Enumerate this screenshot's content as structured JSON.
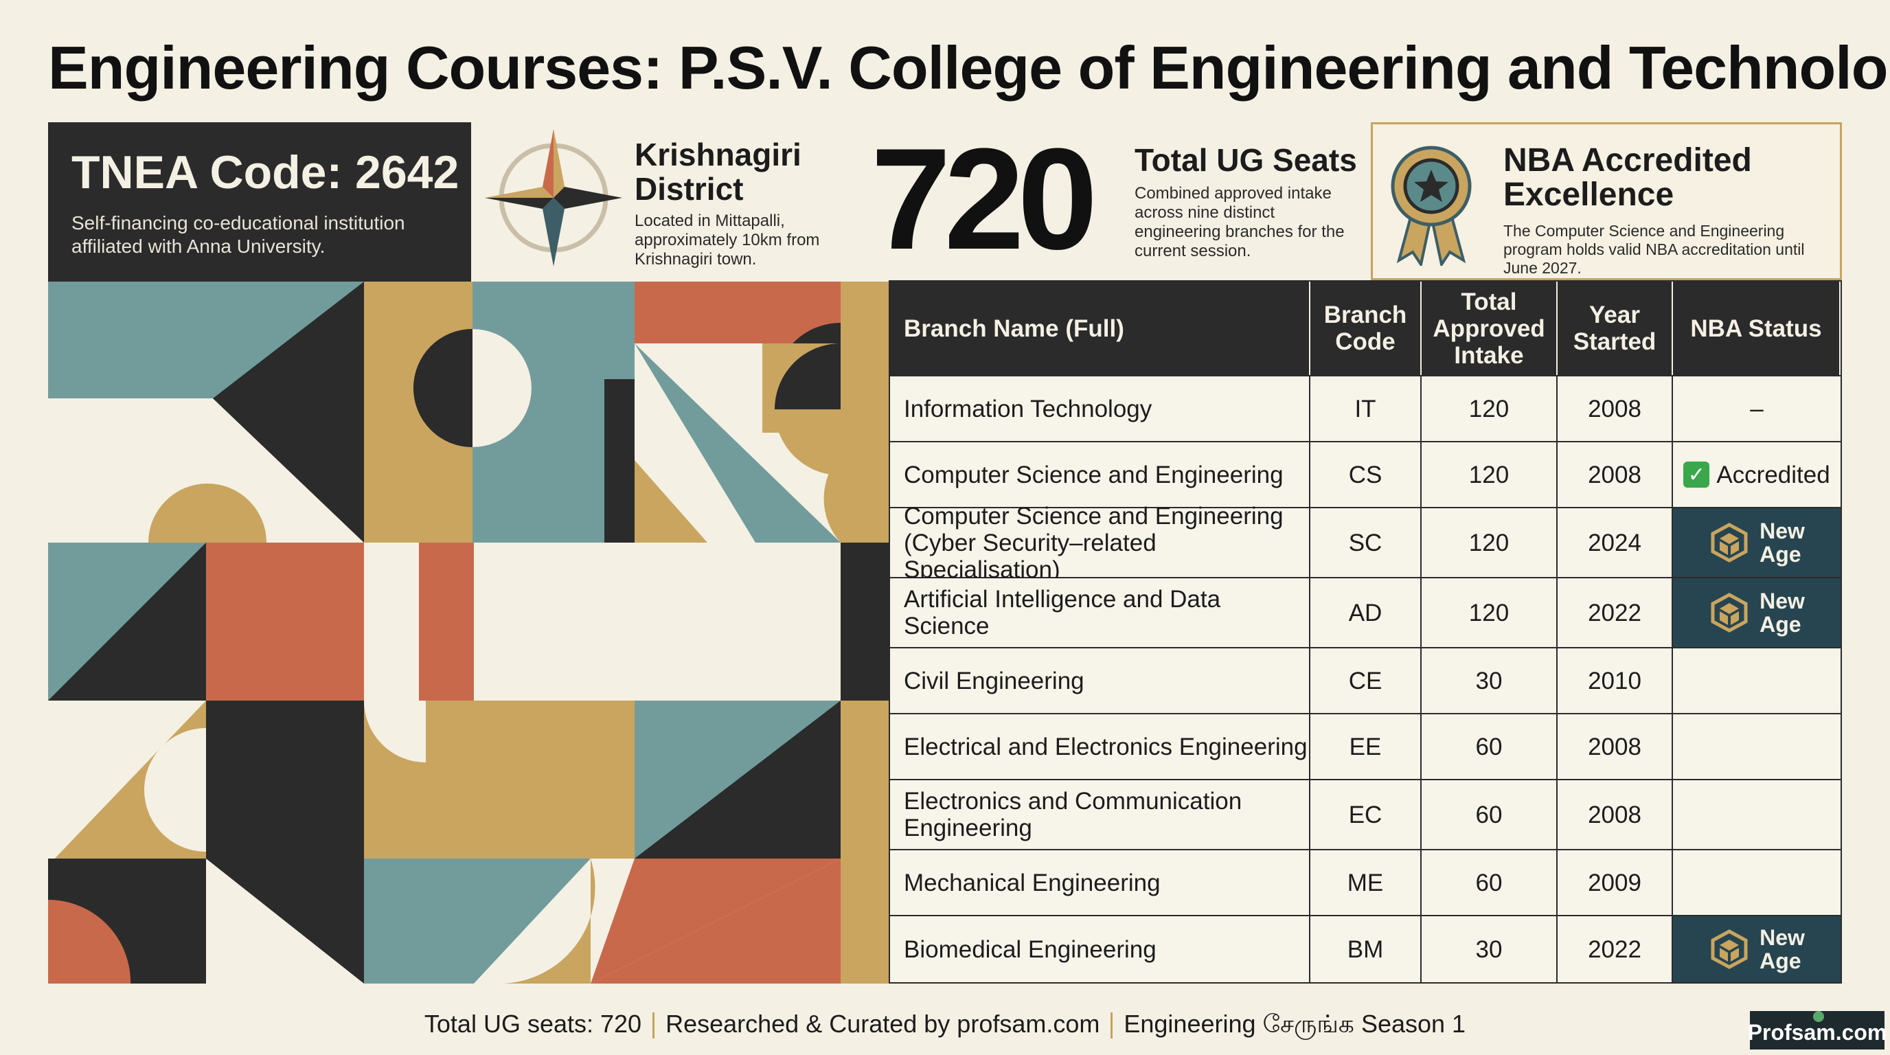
{
  "title": "Engineering Courses: P.S.V. College of Engineering and Technology",
  "tnea": {
    "code_label": "TNEA Code: 2642",
    "description": "Self-financing co-educational institution affiliated with Anna University."
  },
  "location": {
    "title": "Krishnagiri District",
    "description": "Located in Mittapalli, approximately 10km from Krishnagiri town."
  },
  "seats": {
    "number": "720",
    "title": "Total UG Seats",
    "description": "Combined approved intake across nine distinct engineering branches for the current session."
  },
  "nba": {
    "title": "NBA Accredited Excellence",
    "description": "The Computer Science and Engineering program holds valid NBA accreditation until June 2027."
  },
  "table": {
    "headers": [
      "Branch Name (Full)",
      "Branch Code",
      "Total Approved Intake",
      "Year Started",
      "NBA Status"
    ],
    "rows": [
      {
        "name": "Information Technology",
        "code": "IT",
        "intake": "120",
        "year": "2008",
        "status": "–"
      },
      {
        "name": "Computer Science and Engineering",
        "code": "CS",
        "intake": "120",
        "year": "2008",
        "status": "Accredited"
      },
      {
        "name": "Computer Science and Engineering (Cyber Security–related Specialisation)",
        "code": "SC",
        "intake": "120",
        "year": "2024",
        "status": "New Age"
      },
      {
        "name": "Artificial Intelligence and Data Science",
        "code": "AD",
        "intake": "120",
        "year": "2022",
        "status": "New Age"
      },
      {
        "name": "Civil Engineering",
        "code": "CE",
        "intake": "30",
        "year": "2010",
        "status": ""
      },
      {
        "name": "Electrical and Electronics Engineering",
        "code": "EE",
        "intake": "60",
        "year": "2008",
        "status": ""
      },
      {
        "name": "Electronics and Communication Engineering",
        "code": "EC",
        "intake": "60",
        "year": "2008",
        "status": ""
      },
      {
        "name": "Mechanical Engineering",
        "code": "ME",
        "intake": "60",
        "year": "2009",
        "status": ""
      },
      {
        "name": "Biomedical Engineering",
        "code": "BM",
        "intake": "30",
        "year": "2022",
        "status": "New Age"
      }
    ],
    "status_colors": {
      "new_age_bg": "#274550",
      "accredited_check": "#3aa84a"
    }
  },
  "footer": {
    "items": [
      "Total UG seats: 720",
      "Researched & Curated by profsam.com",
      "Engineering சேருங்க Season 1"
    ],
    "brand": "Profsam.com"
  },
  "palette": {
    "teal": "#729c9c",
    "gold": "#c9a55f",
    "rust": "#c9694c",
    "dark": "#2b2b2b",
    "cream": "#f4f0e4"
  },
  "icons": {
    "compass": "compass-star-icon",
    "medal": "award-medal-icon",
    "new_age": "hexagon-cube-icon",
    "check": "check-box-icon"
  }
}
